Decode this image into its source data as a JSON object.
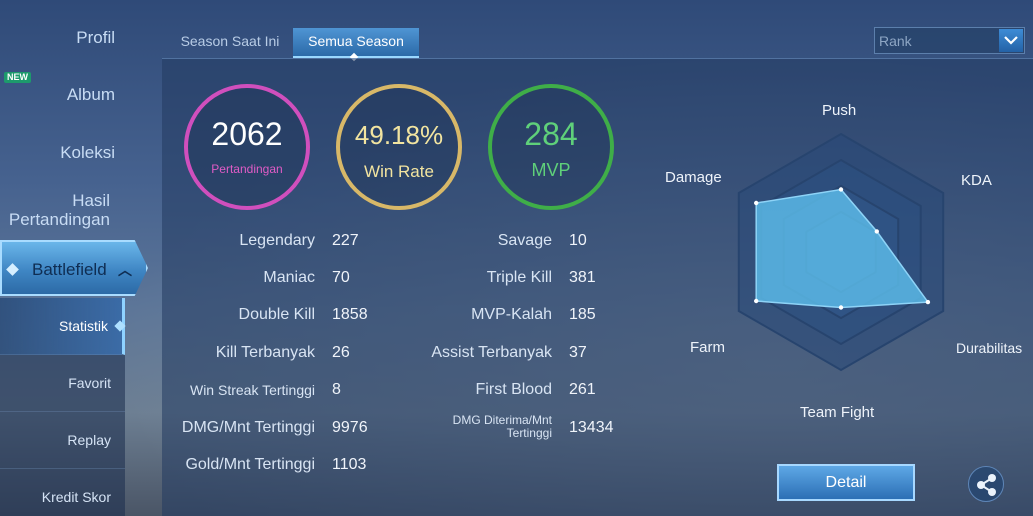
{
  "sidebar": {
    "items": [
      {
        "label": "Profil"
      },
      {
        "label": "Album"
      },
      {
        "label": "Koleksi"
      },
      {
        "label": "Hasil"
      },
      {
        "label": "Pertandingan"
      }
    ],
    "new_badge": "NEW",
    "battlefield_label": "Battlefield",
    "sub_items": [
      {
        "label": "Statistik"
      },
      {
        "label": "Favorit"
      },
      {
        "label": "Replay"
      },
      {
        "label": "Kredit Skor"
      }
    ]
  },
  "tabs": [
    {
      "label": "Season Saat Ini"
    },
    {
      "label": "Semua Season"
    }
  ],
  "filter": {
    "selected": "Rank",
    "icon": "chevron-down-icon"
  },
  "summary": {
    "matches_value": "2062",
    "matches_label": "Pertandingan",
    "winrate_value": "49.18%",
    "winrate_label": "Win Rate",
    "mvp_value": "284",
    "mvp_label": "MVP"
  },
  "stats_left": [
    {
      "label": "Legendary",
      "value": "227"
    },
    {
      "label": "Maniac",
      "value": "70"
    },
    {
      "label": "Double Kill",
      "value": "1858"
    },
    {
      "label": "Kill Terbanyak",
      "value": "26"
    },
    {
      "label": "Win Streak Tertinggi",
      "value": "8"
    },
    {
      "label": "DMG/Mnt Tertinggi",
      "value": "9976"
    },
    {
      "label": "Gold/Mnt Tertinggi",
      "value": "1103"
    }
  ],
  "stats_right": [
    {
      "label": "Savage",
      "value": "10"
    },
    {
      "label": "Triple Kill",
      "value": "381"
    },
    {
      "label": "MVP-Kalah",
      "value": "185"
    },
    {
      "label": "Assist Terbanyak",
      "value": "37"
    },
    {
      "label": "First Blood",
      "value": "261"
    },
    {
      "label": "DMG Diterima/Mnt",
      "value": "13434"
    },
    {
      "label": "Tertinggi",
      "value": ""
    }
  ],
  "radar": {
    "labels": {
      "push": "Push",
      "kda": "KDA",
      "durability": "Durabilitas",
      "teamfight": "Team Fight",
      "farm": "Farm",
      "damage": "Damage"
    },
    "levels": [
      0.53,
      0.35,
      0.85,
      0.47,
      0.83,
      0.83
    ]
  },
  "buttons": {
    "detail": "Detail",
    "share_icon": "share-icon"
  },
  "colors": {
    "matches_ring": "#d04fbd",
    "winrate_ring": "#d8b868",
    "mvp_ring": "#3fae48",
    "matches_text": "#e05cc6",
    "winrate_text": "#f2e4a0",
    "mvp_text": "#5fd07a",
    "radar_fill": "#5bb9e6"
  }
}
